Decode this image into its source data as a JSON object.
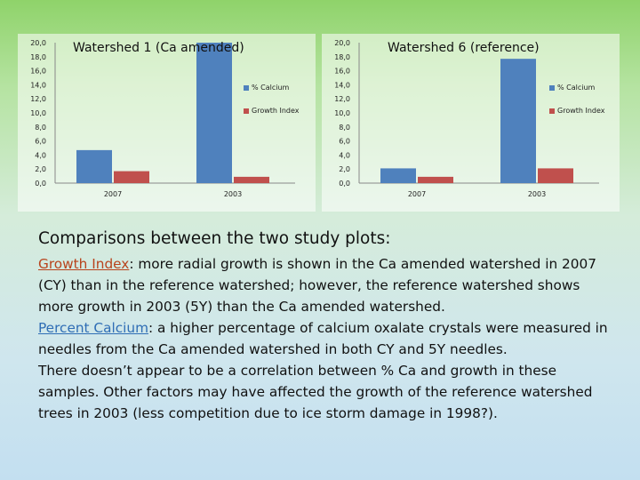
{
  "chart_data": [
    {
      "type": "bar",
      "title": "Watershed 1 (Ca amended)",
      "categories": [
        "2007",
        "2003"
      ],
      "series": [
        {
          "name": "% Calcium",
          "values": [
            4.7,
            20.0
          ],
          "color": "#4f81bd"
        },
        {
          "name": "Growth Index",
          "values": [
            1.7,
            0.9
          ],
          "color": "#c0504d"
        }
      ],
      "yticks": [
        "0,0",
        "2,0",
        "4,0",
        "6,0",
        "8,0",
        "10,0",
        "12,0",
        "14,0",
        "16,0",
        "18,0",
        "20,0"
      ],
      "ylim": [
        0,
        20
      ],
      "grid": false,
      "legend": "right"
    },
    {
      "type": "bar",
      "title": "Watershed 6 (reference)",
      "categories": [
        "2007",
        "2003"
      ],
      "series": [
        {
          "name": "% Calcium",
          "values": [
            2.1,
            17.7
          ],
          "color": "#4f81bd"
        },
        {
          "name": "Growth Index",
          "values": [
            0.9,
            2.1
          ],
          "color": "#c0504d"
        }
      ],
      "yticks": [
        "0,0",
        "2,0",
        "4,0",
        "6,0",
        "8,0",
        "10,0",
        "12,0",
        "14,0",
        "16,0",
        "18,0",
        "20,0"
      ],
      "ylim": [
        0,
        20
      ],
      "grid": false,
      "legend": "right"
    }
  ],
  "text": {
    "heading": "Comparisons between the two study plots:",
    "growth_term": "Growth Index",
    "growth_text": ": more radial growth is shown in the Ca amended watershed in 2007 (CY) than in the reference watershed; however, the reference watershed shows more growth in 2003 (5Y) than the Ca amended watershed.",
    "calcium_term": "Percent Calcium",
    "calcium_text": ":  a higher percentage of calcium oxalate crystals were measured in needles from the Ca amended watershed in both CY and 5Y needles.",
    "conclusion": "There doesn’t appear to be a correlation between % Ca and growth in these samples. Other factors may have affected the growth of the reference watershed trees in 2003 (less competition due to ice storm damage in 1998?)."
  }
}
